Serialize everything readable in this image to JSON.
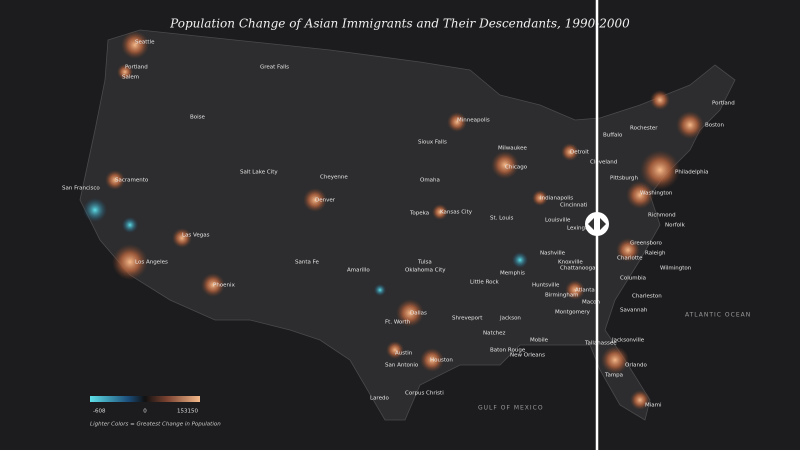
{
  "title": "Population Change of Asian Immigrants and Their Descendants, 1990-2000",
  "legend": {
    "min": "-608",
    "mid": "0",
    "max": "153150",
    "note": "Lighter Colors = Greatest Change in Population"
  },
  "water": [
    "ATLANTIC OCEAN",
    "GULF OF MEXICO"
  ],
  "cities": [
    "Seattle",
    "Portland",
    "Salem",
    "Great Falls",
    "Boise",
    "Sacramento",
    "San Francisco",
    "Salt Lake City",
    "Cheyenne",
    "Denver",
    "Las Vegas",
    "Los Angeles",
    "Phoenix",
    "Santa Fe",
    "Amarillo",
    "Minneapolis",
    "Sioux Falls",
    "Milwaukee",
    "Chicago",
    "Detroit",
    "Cleveland",
    "Omaha",
    "Indianapolis",
    "Cincinnati",
    "Topeka",
    "Kansas City",
    "St. Louis",
    "Louisville",
    "Lexington",
    "Tulsa",
    "Oklahoma City",
    "Nashville",
    "Knoxville",
    "Chattanooga",
    "Memphis",
    "Little Rock",
    "Huntsville",
    "Birmingham",
    "Atlanta",
    "Macon",
    "Dallas",
    "Ft. Worth",
    "Shreveport",
    "Jackson",
    "Montgomery",
    "Natchez",
    "Mobile",
    "Tallahassee",
    "Baton Rouge",
    "New Orleans",
    "Austin",
    "San Antonio",
    "Houston",
    "Laredo",
    "Corpus Christi",
    "Portland",
    "Rochester",
    "Boston",
    "Buffalo",
    "Pittsburgh",
    "Philadelphia",
    "Washington",
    "Richmond",
    "Norfolk",
    "Greensboro",
    "Raleigh",
    "Charlotte",
    "Columbia",
    "Wilmington",
    "Charleston",
    "Savannah",
    "Jacksonville",
    "Orlando",
    "Tampa",
    "Miami"
  ]
}
